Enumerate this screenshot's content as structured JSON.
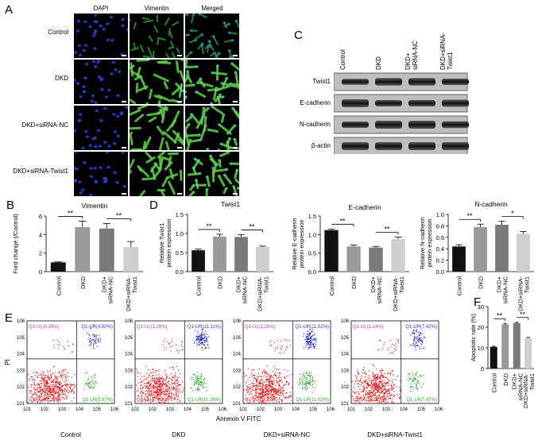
{
  "panel_labels": {
    "A": "A",
    "B": "B",
    "C": "C",
    "D": "D",
    "E": "E",
    "F": "F"
  },
  "panelA": {
    "columns": [
      "DAPI",
      "Vimentin",
      "Merged"
    ],
    "rows": [
      "Control",
      "DKD",
      "DKD+siRNA-NC",
      "DKD+siRNA-Twist1"
    ]
  },
  "panelC": {
    "lanes": [
      "Control",
      "DKD",
      "DKD+\nsiRNA-NC",
      "DKD+siRNA-\nTwist1"
    ],
    "proteins": [
      "Twist1",
      "E-cadherin",
      "N-cadherin",
      "β-actin"
    ]
  },
  "panelE": {
    "samples": [
      {
        "name": "Control",
        "ul": "Q1-UL(0.39%)",
        "ur": "Q1-UR(4.50%)",
        "ll": "Q1-LL(89.14%)",
        "lr": "Q1-LR(5.97%)"
      },
      {
        "name": "DKD",
        "ul": "Q1-UL(1.20%)",
        "ur": "Q1-UR(11.11%)",
        "ll": "Q1-LL(77.43%)",
        "lr": "Q1-LR(10.26%)"
      },
      {
        "name": "DKD+siRNA-NC",
        "ul": "Q1-UL(1.26%)",
        "ur": "Q1-UR(11.52%)",
        "ll": "Q1-LL(76.20%)",
        "lr": "Q1-LR(11.02%)"
      },
      {
        "name": "DKD+siRNA-Twist1",
        "ul": "Q1-UL(1.14%)",
        "ur": "Q1-UR(7.42%)",
        "ll": "Q1-LL(83.97%)",
        "lr": "Q1-LR(7.47%)"
      }
    ],
    "xlabel": "Annexin V FITC",
    "ylabel": "PI",
    "xticks": [
      "10^1",
      "10^2",
      "10^3",
      "10^4",
      "10^5",
      "10^6"
    ],
    "yticks": [
      "10^1",
      "10^2",
      "10^3",
      "10^4",
      "10^5",
      "10^6"
    ]
  },
  "chart_data": [
    {
      "id": "B",
      "type": "bar",
      "title": "Vimentin",
      "ylabel": "Ford change (/Control)",
      "categories": [
        "Control",
        "DKD",
        "DKD+\nsiRNA-NC",
        "DKD+siRNA-\nTwist1"
      ],
      "values": [
        1.0,
        4.8,
        4.65,
        2.65
      ],
      "errors": [
        0.05,
        0.65,
        0.55,
        0.6
      ],
      "colors": [
        "#111111",
        "#999999",
        "#7a7a7a",
        "#cfcfcf"
      ],
      "ylim": [
        0,
        6
      ],
      "yticks": [
        "0",
        "2",
        "4",
        "6"
      ],
      "sig": [
        {
          "from": 0,
          "to": 1,
          "label": "**"
        },
        {
          "from": 2,
          "to": 3,
          "label": "**"
        }
      ]
    },
    {
      "id": "D1",
      "type": "bar",
      "title": "Twist1",
      "ylabel": "Relative Twist1\nprotein expression",
      "categories": [
        "Control",
        "DKD",
        "DKD+\nsiRNA-NC",
        "DKD+siRNA-\nTwist1"
      ],
      "values": [
        0.56,
        0.92,
        0.91,
        0.65
      ],
      "errors": [
        0.03,
        0.06,
        0.06,
        0.02
      ],
      "colors": [
        "#111111",
        "#999999",
        "#7a7a7a",
        "#cfcfcf"
      ],
      "ylim": [
        0,
        1.5
      ],
      "yticks": [
        "0.0",
        "0.5",
        "1.0",
        "1.5"
      ],
      "sig": [
        {
          "from": 0,
          "to": 1,
          "label": "**"
        },
        {
          "from": 2,
          "to": 3,
          "label": "**"
        }
      ]
    },
    {
      "id": "D2",
      "type": "bar",
      "title": "E-cadherin",
      "ylabel": "Relative E-cadherin\nprotein expression",
      "categories": [
        "Control",
        "DKD",
        "DKD+\nsiRNA-NC",
        "DKD+siRNA-\nTwist1"
      ],
      "values": [
        1.12,
        0.68,
        0.65,
        0.88
      ],
      "errors": [
        0.03,
        0.04,
        0.03,
        0.05
      ],
      "colors": [
        "#111111",
        "#999999",
        "#7a7a7a",
        "#cfcfcf"
      ],
      "ylim": [
        0,
        1.5
      ],
      "yticks": [
        "0.0",
        "0.5",
        "1.0",
        "1.5"
      ],
      "sig": [
        {
          "from": 0,
          "to": 1,
          "label": "**"
        },
        {
          "from": 2,
          "to": 3,
          "label": "**"
        }
      ]
    },
    {
      "id": "D3",
      "type": "bar",
      "title": "N-cadherin",
      "ylabel": "Relative N-cadherin\nprotein expression",
      "categories": [
        "Control",
        "DKD",
        "DKD+\nsiRNA-NC",
        "DKD+siRNA-\nTwist1"
      ],
      "values": [
        0.44,
        0.78,
        0.82,
        0.66
      ],
      "errors": [
        0.03,
        0.05,
        0.06,
        0.04
      ],
      "colors": [
        "#111111",
        "#999999",
        "#7a7a7a",
        "#cfcfcf"
      ],
      "ylim": [
        0,
        1.0
      ],
      "yticks": [
        "0.0",
        "0.2",
        "0.4",
        "0.6",
        "0.8",
        "1.0"
      ],
      "sig": [
        {
          "from": 0,
          "to": 1,
          "label": "**"
        },
        {
          "from": 2,
          "to": 3,
          "label": "*"
        }
      ]
    },
    {
      "id": "F",
      "type": "bar",
      "title": "",
      "ylabel": "Apoptotic rate (%)",
      "categories": [
        "Control",
        "DKD",
        "DKD+\nsiRNA-NC",
        "DKD+siRNA-\nTwist1"
      ],
      "values": [
        10.5,
        21.4,
        22.0,
        14.8
      ],
      "errors": [
        0.3,
        0.4,
        0.4,
        0.3
      ],
      "colors": [
        "#111111",
        "#999999",
        "#7a7a7a",
        "#cfcfcf"
      ],
      "ylim": [
        0,
        30
      ],
      "yticks": [
        "0",
        "10",
        "20",
        "30"
      ],
      "sig": [
        {
          "from": 0,
          "to": 1,
          "label": "**"
        },
        {
          "from": 2,
          "to": 3,
          "label": "**"
        }
      ]
    }
  ]
}
